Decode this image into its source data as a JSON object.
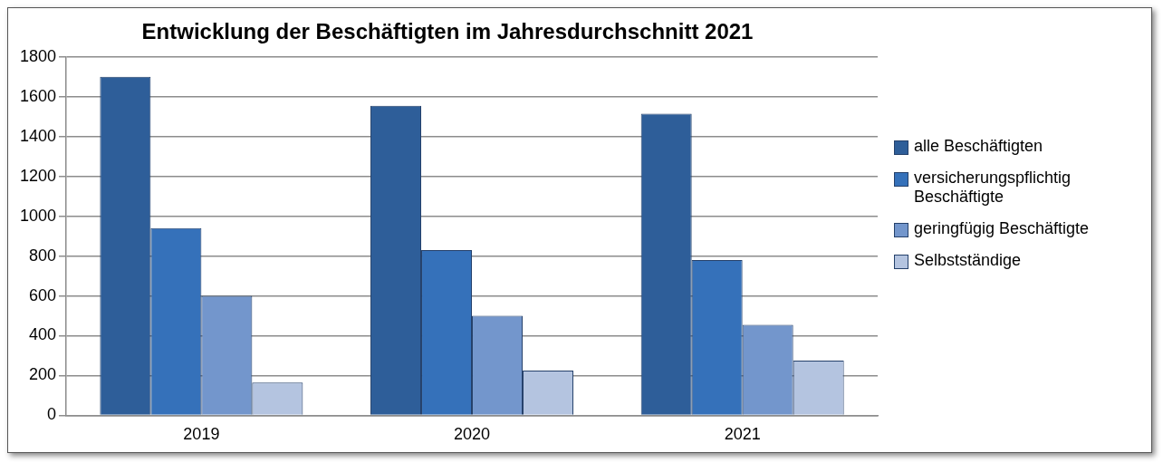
{
  "chart_data": {
    "type": "bar",
    "title": "Entwicklung der Beschäftigten im Jahresdurchschnitt 2021",
    "categories": [
      "2019",
      "2020",
      "2021"
    ],
    "series": [
      {
        "name": "alle Beschäftigten",
        "color": "#2e5e99",
        "values": [
          1700,
          1555,
          1515
        ]
      },
      {
        "name": "versicherungspflichtig Beschäftigte",
        "color": "#3571ba",
        "values": [
          940,
          830,
          780
        ]
      },
      {
        "name": "geringfügig Beschäftigte",
        "color": "#7396cc",
        "values": [
          600,
          500,
          455
        ]
      },
      {
        "name": "Selbstständige",
        "color": "#b4c4e0",
        "values": [
          165,
          225,
          275
        ]
      }
    ],
    "ylim": [
      0,
      1800
    ],
    "yticks": [
      0,
      200,
      400,
      600,
      800,
      1000,
      1200,
      1400,
      1600,
      1800
    ],
    "grid": "y",
    "legend": "right"
  }
}
